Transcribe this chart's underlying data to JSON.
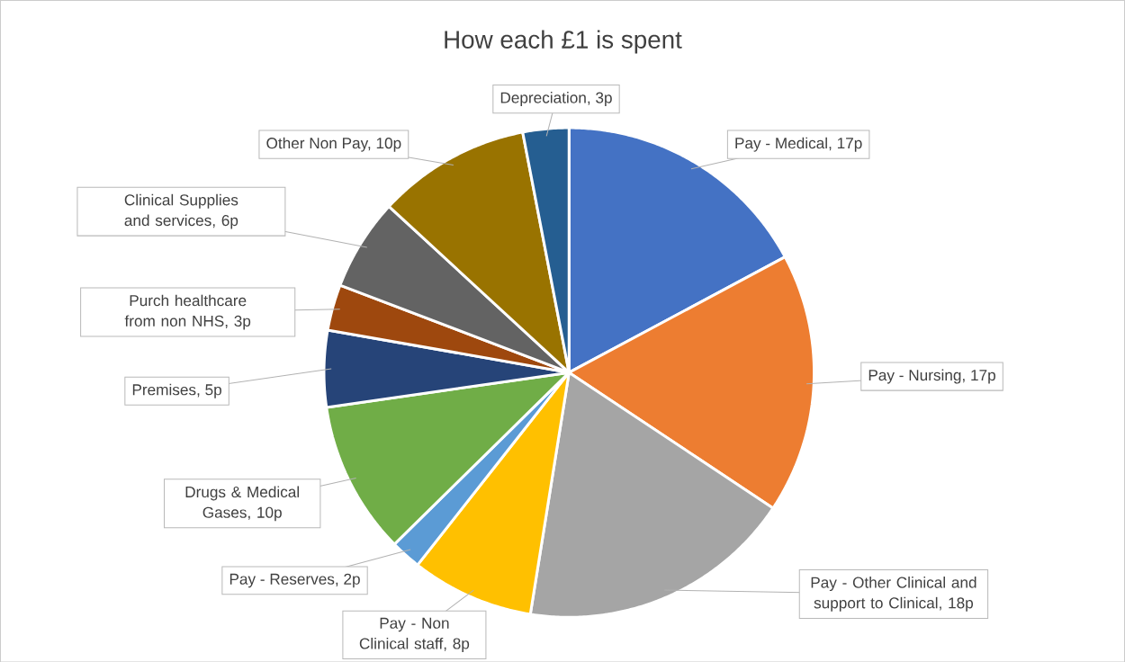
{
  "chart_data": {
    "type": "pie",
    "title": "How each £1 is spent",
    "categories": [
      "Pay - Medical, 17p",
      "Pay - Nursing, 17p",
      "Pay - Other Clinical and support to Clinical, 18p",
      "Pay - Non Clinical staff, 8p",
      "Pay - Reserves, 2p",
      "Drugs & Medical Gases, 10p",
      "Premises, 5p",
      "Purch healthcare from non NHS, 3p",
      "Clinical Supplies and services, 6p",
      "Other Non Pay, 10p",
      "Depreciation, 3p"
    ],
    "values": [
      17,
      17,
      18,
      8,
      2,
      10,
      5,
      3,
      6,
      10,
      3
    ],
    "colors": [
      "#4472c4",
      "#ed7d31",
      "#a5a5a5",
      "#ffc000",
      "#5b9bd5",
      "#70ad47",
      "#264478",
      "#9e480e",
      "#636363",
      "#997300",
      "#255e91"
    ],
    "legend": false
  }
}
